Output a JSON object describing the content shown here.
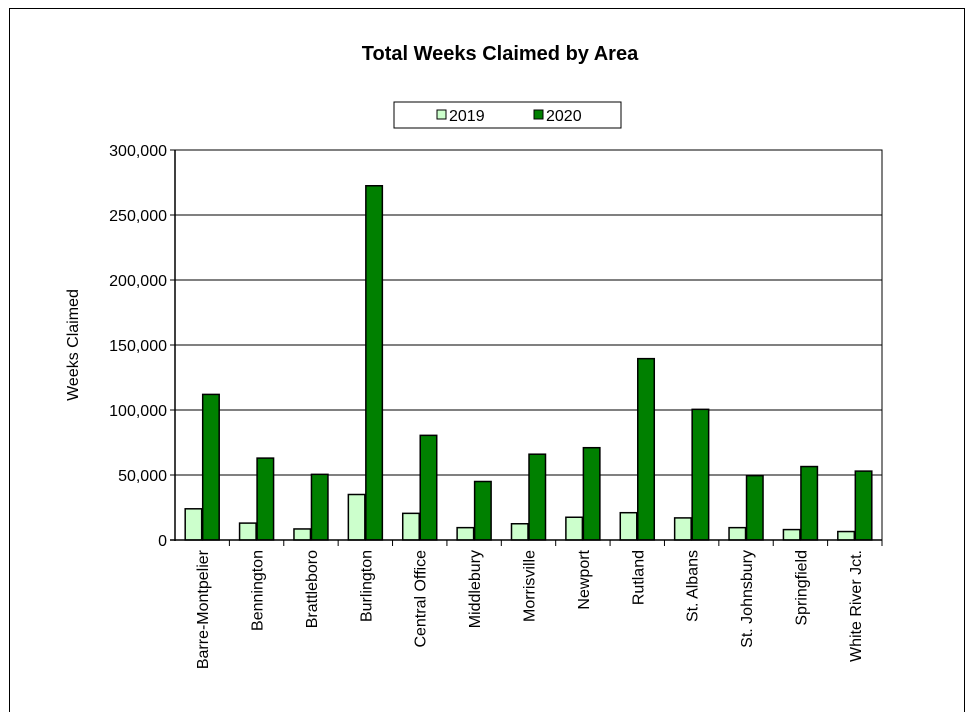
{
  "chart_data": {
    "type": "bar",
    "title": "Total Weeks Claimed by Area",
    "xlabel": "",
    "ylabel": "Weeks Claimed",
    "ylim": [
      0,
      300000
    ],
    "yticks": [
      0,
      50000,
      100000,
      150000,
      200000,
      250000,
      300000
    ],
    "ytick_labels": [
      "0",
      "50,000",
      "100,000",
      "150,000",
      "200,000",
      "250,000",
      "300,000"
    ],
    "grid": true,
    "legend_position": "top-center",
    "categories": [
      "Barre-Montpelier",
      "Bennington",
      "Brattleboro",
      "Burlington",
      "Central Office",
      "Middlebury",
      "Morrisville",
      "Newport",
      "Rutland",
      "St. Albans",
      "St. Johnsbury",
      "Springfield",
      "White River Jct."
    ],
    "series": [
      {
        "name": "2019",
        "color": "#ccffcc",
        "values": [
          24000,
          13000,
          8500,
          35000,
          20500,
          9500,
          12500,
          17500,
          21000,
          17000,
          9500,
          8000,
          6500
        ]
      },
      {
        "name": "2020",
        "color": "#008000",
        "values": [
          112000,
          63000,
          50500,
          272500,
          80500,
          45000,
          66000,
          71000,
          139500,
          100500,
          49500,
          56500,
          53000
        ]
      }
    ]
  }
}
